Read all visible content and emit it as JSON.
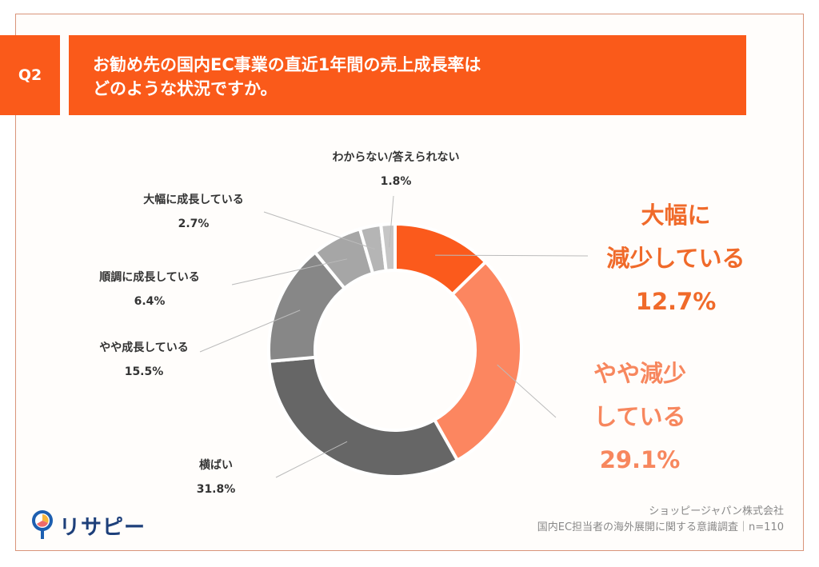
{
  "question": {
    "number": "Q2",
    "title_line1": "お勧め先の国内EC事業の直近1年間の売上成長率は",
    "title_line2": "どのような状況ですか。"
  },
  "chart_data": {
    "type": "pie",
    "donut": true,
    "start": "top",
    "direction": "clockwise",
    "slices": [
      {
        "label": "大幅に減少している",
        "label_lines": [
          "大幅に",
          "減少している"
        ],
        "value": 12.7,
        "value_label": "12.7%",
        "color": "#fb5a1c"
      },
      {
        "label": "やや減少している",
        "label_lines": [
          "やや減少",
          "している"
        ],
        "value": 29.1,
        "value_label": "29.1%",
        "color": "#fc8660"
      },
      {
        "label": "横ばい",
        "value": 31.8,
        "value_label": "31.8%",
        "color": "#666666"
      },
      {
        "label": "やや成長している",
        "value": 15.5,
        "value_label": "15.5%",
        "color": "#878787"
      },
      {
        "label": "順調に成長している",
        "value": 6.4,
        "value_label": "6.4%",
        "color": "#a6a6a6"
      },
      {
        "label": "大幅に成長している",
        "value": 2.7,
        "value_label": "2.7%",
        "color": "#b5b5b5"
      },
      {
        "label": "わからない/答えられない",
        "value": 1.8,
        "value_label": "1.8%",
        "color": "#c6c6c6"
      }
    ]
  },
  "colors": {
    "accent": "#fa5a1a",
    "decrease_large": "#f06a2a",
    "decrease_slight": "#f7875e"
  },
  "footer": {
    "company": "ショッピージャパン株式会社",
    "survey": "国内EC担当者の海外展開に関する意識調査｜n=110"
  },
  "logo": {
    "text": "リサピー"
  }
}
